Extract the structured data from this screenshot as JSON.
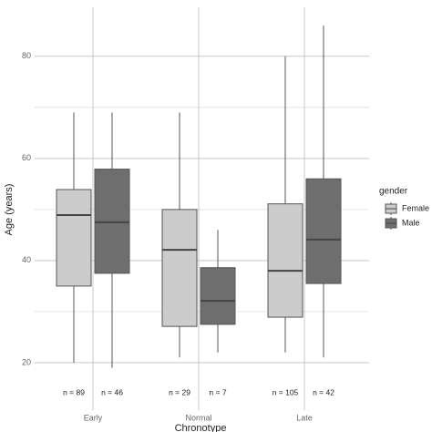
{
  "chart_data": {
    "type": "box",
    "x_label": "Chronotype",
    "y_label": "Age (years)",
    "categories": [
      "Early",
      "Normal",
      "Late"
    ],
    "ylim": [
      10.7,
      89.6
    ],
    "yticks": [
      20,
      40,
      60,
      80
    ],
    "yminor": [
      30,
      50,
      70
    ],
    "grid": true,
    "legend_title": "gender",
    "legend_position": "right",
    "series": [
      {
        "name": "Female",
        "color": "#cccccc",
        "low": [
          20,
          21,
          22
        ],
        "q1": [
          35,
          27.1,
          28.9
        ],
        "median": [
          48.9,
          42.1,
          38
        ],
        "q3": [
          53.9,
          50,
          51.1
        ],
        "high": [
          69,
          69,
          80
        ],
        "n_labels": [
          "n = 89",
          "n = 29",
          "n = 105"
        ]
      },
      {
        "name": "Male",
        "color": "#6e6e6e",
        "low": [
          19,
          22,
          21
        ],
        "q1": [
          37.5,
          27.5,
          35.5
        ],
        "median": [
          47.5,
          32.1,
          44.1
        ],
        "q3": [
          57.9,
          38.6,
          56
        ],
        "high": [
          69,
          46,
          86
        ],
        "n_labels": [
          "n = 46",
          "n = 7",
          "n = 42"
        ]
      }
    ]
  }
}
